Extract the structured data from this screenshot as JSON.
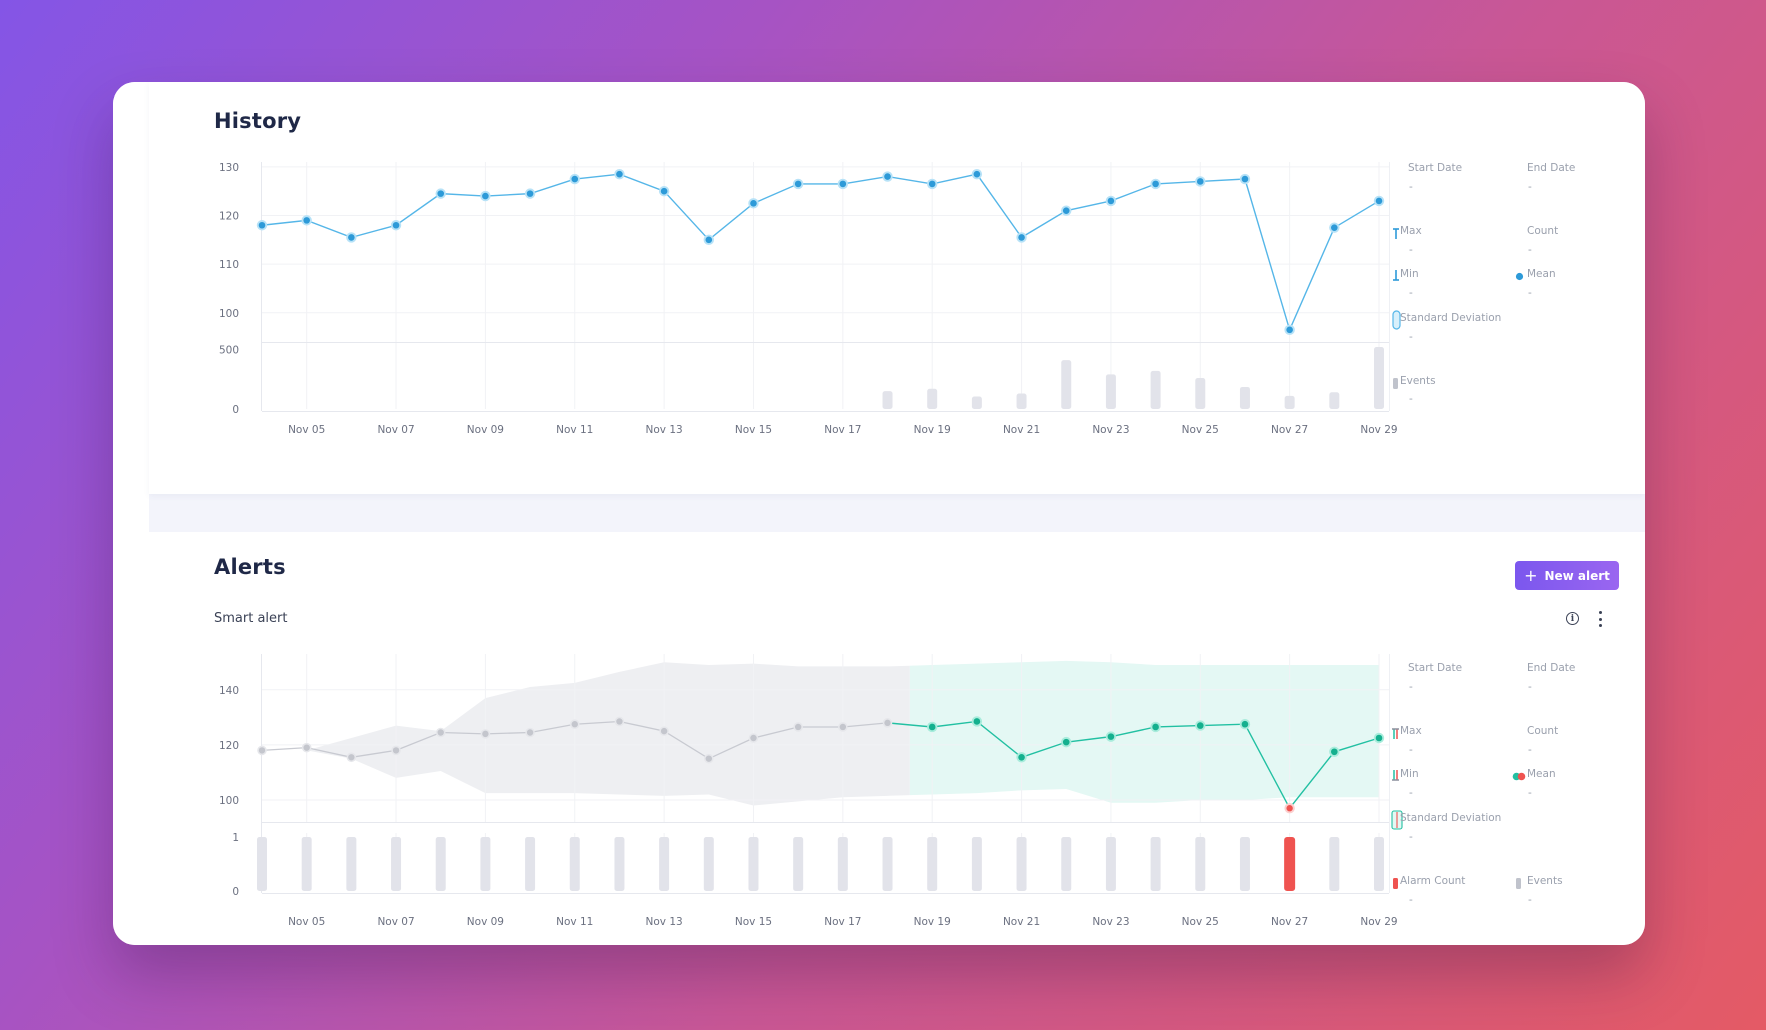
{
  "colors": {
    "history_line": "#55b6e8",
    "history_point": "#2d9ad8",
    "history_halo": "#b7e2f7",
    "alert_line": "#22c0a2",
    "alert_band": "#e4f8f4",
    "baseline_line": "#c8cad1",
    "baseline_band": "#eeeff2",
    "bar_gray": "#e2e3ea",
    "alarm_red": "#ef5350",
    "button": "#8a5cf0"
  },
  "history": {
    "title": "History",
    "legend": {
      "start_date": "Start Date",
      "start_date_value": "-",
      "end_date": "End Date",
      "end_date_value": "-",
      "max": "Max",
      "max_value": "-",
      "count": "Count",
      "count_value": "-",
      "min": "Min",
      "min_value": "-",
      "mean": "Mean",
      "mean_value": "-",
      "std": "Standard Deviation",
      "std_value": "-",
      "events": "Events",
      "events_value": "-"
    }
  },
  "alerts": {
    "title": "Alerts",
    "new_alert_label": "New alert",
    "subtitle": "Smart alert",
    "icons": {
      "info": "info-icon",
      "more": "more-vertical-icon",
      "plus": "plus-icon"
    },
    "legend": {
      "start_date": "Start Date",
      "start_date_value": "-",
      "end_date": "End Date",
      "end_date_value": "-",
      "max": "Max",
      "max_value": "-",
      "count": "Count",
      "count_value": "-",
      "min": "Min",
      "min_value": "-",
      "mean": "Mean",
      "mean_value": "-",
      "std": "Standard Deviation",
      "std_value": "-",
      "alarm_count": "Alarm Count",
      "alarm_count_value": "-",
      "events": "Events",
      "events_value": "-"
    }
  },
  "chart_data": [
    {
      "type": "line",
      "x": [
        "2023-11-04",
        "2023-11-05",
        "2023-11-06",
        "2023-11-07",
        "2023-11-08",
        "2023-11-09",
        "2023-11-10",
        "2023-11-11",
        "2023-11-12",
        "2023-11-13",
        "2023-11-14",
        "2023-11-15",
        "2023-11-16",
        "2023-11-17",
        "2023-11-18",
        "2023-11-19",
        "2023-11-20",
        "2023-11-21",
        "2023-11-22",
        "2023-11-23",
        "2023-11-24",
        "2023-11-25",
        "2023-11-26",
        "2023-11-27",
        "2023-11-28",
        "2023-11-29"
      ],
      "x_tick_labels": [
        "Nov 05",
        "Nov 07",
        "Nov 09",
        "Nov 11",
        "Nov 13",
        "Nov 15",
        "Nov 17",
        "Nov 19",
        "Nov 21",
        "Nov 23",
        "Nov 25",
        "Nov 27",
        "Nov 29"
      ],
      "y_ticks": [
        100,
        110,
        120,
        130
      ],
      "ylim": [
        94,
        131
      ],
      "series": [
        {
          "values": [
            118,
            119,
            115.5,
            118,
            124.5,
            124,
            124.5,
            127.5,
            128.5,
            125,
            115,
            122.5,
            126.5,
            126.5,
            128,
            126.5,
            128.5,
            115.5,
            121,
            123,
            126.5,
            127,
            127.5,
            96.5,
            117.5,
            123
          ]
        }
      ]
    },
    {
      "type": "bar",
      "x": [
        "2023-11-04",
        "2023-11-05",
        "2023-11-06",
        "2023-11-07",
        "2023-11-08",
        "2023-11-09",
        "2023-11-10",
        "2023-11-11",
        "2023-11-12",
        "2023-11-13",
        "2023-11-14",
        "2023-11-15",
        "2023-11-16",
        "2023-11-17",
        "2023-11-18",
        "2023-11-19",
        "2023-11-20",
        "2023-11-21",
        "2023-11-22",
        "2023-11-23",
        "2023-11-24",
        "2023-11-25",
        "2023-11-26",
        "2023-11-27",
        "2023-11-28",
        "2023-11-29"
      ],
      "y_ticks": [
        0,
        500
      ],
      "ylim": [
        0,
        520
      ],
      "series": [
        {
          "values": [
            0,
            0,
            0,
            0,
            0,
            0,
            0,
            0,
            0,
            0,
            0,
            0,
            0,
            0,
            150,
            170,
            105,
            130,
            410,
            290,
            320,
            260,
            185,
            110,
            140,
            520
          ]
        }
      ]
    },
    {
      "type": "line",
      "x": [
        "2023-11-04",
        "2023-11-05",
        "2023-11-06",
        "2023-11-07",
        "2023-11-08",
        "2023-11-09",
        "2023-11-10",
        "2023-11-11",
        "2023-11-12",
        "2023-11-13",
        "2023-11-14",
        "2023-11-15",
        "2023-11-16",
        "2023-11-17",
        "2023-11-18",
        "2023-11-19",
        "2023-11-20",
        "2023-11-21",
        "2023-11-22",
        "2023-11-23",
        "2023-11-24",
        "2023-11-25",
        "2023-11-26",
        "2023-11-27",
        "2023-11-28",
        "2023-11-29"
      ],
      "x_tick_labels": [
        "Nov 05",
        "Nov 07",
        "Nov 09",
        "Nov 11",
        "Nov 13",
        "Nov 15",
        "Nov 17",
        "Nov 19",
        "Nov 21",
        "Nov 23",
        "Nov 25",
        "Nov 27",
        "Nov 29"
      ],
      "y_ticks": [
        100,
        120,
        140
      ],
      "ylim": [
        92,
        153
      ],
      "series": [
        {
          "values": [
            118,
            119,
            115.5,
            118,
            124.5,
            124,
            124.5,
            127.5,
            128.5,
            125,
            115,
            122.5,
            126.5,
            126.5,
            128,
            126.5,
            128.5,
            115.5,
            121,
            123,
            126.5,
            127,
            127.5,
            97,
            117.5,
            122.5
          ]
        }
      ],
      "band": {
        "x_day": [
          4.5,
          5,
          6,
          7,
          8,
          9,
          10,
          11,
          12,
          13,
          14,
          15,
          16,
          17,
          18,
          19,
          20,
          21,
          22,
          23,
          24,
          25,
          26,
          27,
          28,
          29
        ],
        "upper": [
          null,
          118,
          122.5,
          127,
          125,
          137,
          141,
          142.5,
          146.5,
          150,
          149,
          149.5,
          148.5,
          148.5,
          148.5,
          149,
          149.5,
          150,
          150.5,
          150,
          149,
          149,
          149,
          149,
          149,
          149
        ],
        "lower": [
          null,
          118,
          115,
          108,
          110.5,
          102.5,
          102.5,
          102.5,
          102,
          101.5,
          102,
          98,
          99.5,
          101,
          101.5,
          102,
          102.5,
          103.5,
          104,
          99,
          99,
          100,
          100,
          101,
          101,
          101
        ],
        "prediction_start_day": 18.5
      }
    },
    {
      "type": "bar",
      "x": [
        "2023-11-04",
        "2023-11-05",
        "2023-11-06",
        "2023-11-07",
        "2023-11-08",
        "2023-11-09",
        "2023-11-10",
        "2023-11-11",
        "2023-11-12",
        "2023-11-13",
        "2023-11-14",
        "2023-11-15",
        "2023-11-16",
        "2023-11-17",
        "2023-11-18",
        "2023-11-19",
        "2023-11-20",
        "2023-11-21",
        "2023-11-22",
        "2023-11-23",
        "2023-11-24",
        "2023-11-25",
        "2023-11-26",
        "2023-11-27",
        "2023-11-28",
        "2023-11-29"
      ],
      "y_ticks": [
        0,
        1
      ],
      "ylim": [
        0,
        1
      ],
      "series": [
        {
          "values": [
            1,
            1,
            1,
            1,
            1,
            1,
            1,
            1,
            1,
            1,
            1,
            1,
            1,
            1,
            1,
            1,
            1,
            1,
            1,
            1,
            1,
            1,
            1,
            1,
            1,
            1
          ]
        }
      ],
      "alarm_dates": [
        "2023-11-27"
      ]
    }
  ]
}
